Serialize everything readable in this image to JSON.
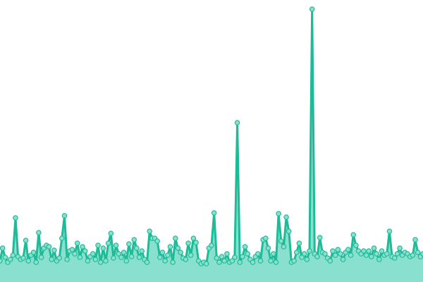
{
  "chart_data": {
    "type": "area",
    "title": "",
    "xlabel": "",
    "ylabel": "",
    "axes_visible": false,
    "grid": false,
    "legend": "none",
    "xlim": [
      0,
      164
    ],
    "ylim": [
      0,
      400
    ],
    "colors": {
      "line": "#1dbb97",
      "fill": "#8ae0cf",
      "marker_fill": "#8ae0cf",
      "marker_stroke": "#1dbb97"
    },
    "series": [
      {
        "values": [
          30,
          48,
          35,
          28,
          32,
          38,
          91,
          36,
          32,
          34,
          59,
          30,
          38,
          42,
          28,
          70,
          35,
          48,
          52,
          50,
          32,
          45,
          30,
          34,
          62,
          94,
          32,
          44,
          46,
          40,
          55,
          35,
          50,
          44,
          30,
          36,
          40,
          32,
          52,
          28,
          48,
          30,
          55,
          69,
          34,
          52,
          40,
          35,
          42,
          30,
          54,
          36,
          60,
          48,
          35,
          44,
          32,
          28,
          72,
          62,
          62,
          58,
          35,
          42,
          30,
          38,
          50,
          28,
          62,
          48,
          42,
          34,
          32,
          55,
          38,
          62,
          56,
          30,
          26,
          28,
          26,
          48,
          52,
          98,
          34,
          28,
          36,
          30,
          40,
          28,
          30,
          35,
          226,
          28,
          36,
          50,
          40,
          32,
          28,
          36,
          40,
          30,
          60,
          62,
          48,
          30,
          40,
          28,
          97,
          58,
          50,
          92,
          72,
          28,
          30,
          42,
          55,
          35,
          40,
          32,
          44,
          387,
          40,
          36,
          63,
          42,
          40,
          34,
          30,
          44,
          38,
          46,
          40,
          32,
          42,
          46,
          38,
          67,
          52,
          44,
          40,
          44,
          38,
          44,
          36,
          48,
          40,
          32,
          44,
          38,
          40,
          72,
          36,
          34,
          40,
          48,
          38,
          42,
          40,
          36,
          38,
          60,
          42,
          36,
          40
        ]
      }
    ]
  }
}
